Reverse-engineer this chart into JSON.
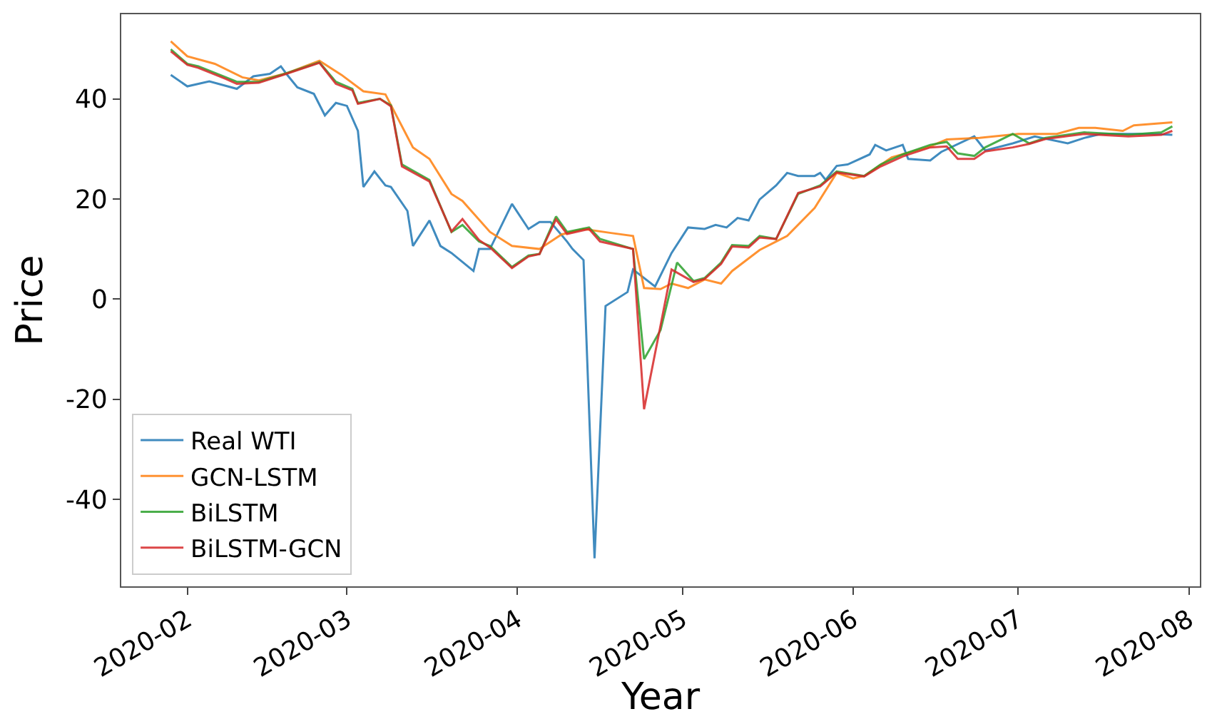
{
  "chart_data": {
    "type": "line",
    "xlabel": "Year",
    "ylabel": "Price",
    "xlim": [
      "2020-01-20",
      "2020-08-03"
    ],
    "ylim": [
      -57.4,
      56.9
    ],
    "xticks": [
      "2020-02",
      "2020-03",
      "2020-04",
      "2020-05",
      "2020-06",
      "2020-07",
      "2020-08"
    ],
    "yticks": [
      -40,
      -20,
      0,
      20,
      40
    ],
    "grid": false,
    "legend": "bottom left",
    "marker": "none",
    "line_style": "solid",
    "series": [
      {
        "name": "Real WTI",
        "color": "#1f77b4",
        "x": [
          "2020-01-29",
          "2020-02-01",
          "2020-02-05",
          "2020-02-10",
          "2020-02-13",
          "2020-02-16",
          "2020-02-18",
          "2020-02-19",
          "2020-02-21",
          "2020-02-24",
          "2020-02-26",
          "2020-02-28",
          "2020-03-01",
          "2020-03-03",
          "2020-03-04",
          "2020-03-06",
          "2020-03-08",
          "2020-03-09",
          "2020-03-12",
          "2020-03-13",
          "2020-03-16",
          "2020-03-18",
          "2020-03-20",
          "2020-03-24",
          "2020-03-25",
          "2020-03-27",
          "2020-03-31",
          "2020-04-03",
          "2020-04-05",
          "2020-04-07",
          "2020-04-10",
          "2020-04-11",
          "2020-04-13",
          "2020-04-15",
          "2020-04-17",
          "2020-04-21",
          "2020-04-22",
          "2020-04-26",
          "2020-04-29",
          "2020-05-02",
          "2020-05-05",
          "2020-05-07",
          "2020-05-09",
          "2020-05-11",
          "2020-05-13",
          "2020-05-15",
          "2020-05-18",
          "2020-05-20",
          "2020-05-22",
          "2020-05-25",
          "2020-05-26",
          "2020-05-27",
          "2020-05-29",
          "2020-05-31",
          "2020-06-04",
          "2020-06-05",
          "2020-06-07",
          "2020-06-10",
          "2020-06-11",
          "2020-06-15",
          "2020-06-17",
          "2020-06-23",
          "2020-06-25",
          "2020-06-30",
          "2020-07-04",
          "2020-07-10",
          "2020-07-13",
          "2020-07-16",
          "2020-07-21",
          "2020-07-25",
          "2020-07-29"
        ],
        "values": [
          44.8,
          42.5,
          43.5,
          42,
          44.5,
          45,
          46.5,
          45,
          42.3,
          41,
          36.7,
          39.2,
          38.6,
          33.6,
          22.4,
          25.5,
          22.7,
          22.4,
          17.6,
          10.6,
          15.7,
          10.6,
          9.2,
          5.6,
          10,
          10,
          19,
          14,
          15.4,
          15.4,
          11.5,
          10,
          7.8,
          -51.8,
          -1.4,
          1.4,
          5.9,
          2.5,
          9.2,
          14.3,
          14,
          14.8,
          14.3,
          16.2,
          15.7,
          19.9,
          22.7,
          25.2,
          24.6,
          24.6,
          25.2,
          23.8,
          26.6,
          26.9,
          28.9,
          30.8,
          29.7,
          30.8,
          28,
          27.7,
          29.4,
          32.5,
          29.7,
          31.1,
          32.5,
          31.1,
          32.2,
          33,
          33,
          33,
          32.8
        ]
      },
      {
        "name": "GCN-LSTM",
        "color": "#ff7f0e",
        "x": [
          "2020-01-29",
          "2020-02-01",
          "2020-02-06",
          "2020-02-11",
          "2020-02-14",
          "2020-02-19",
          "2020-02-25",
          "2020-02-29",
          "2020-03-04",
          "2020-03-08",
          "2020-03-13",
          "2020-03-16",
          "2020-03-20",
          "2020-03-22",
          "2020-03-27",
          "2020-03-31",
          "2020-04-05",
          "2020-04-09",
          "2020-04-13",
          "2020-04-18",
          "2020-04-22",
          "2020-04-24",
          "2020-04-27",
          "2020-04-29",
          "2020-05-02",
          "2020-05-05",
          "2020-05-08",
          "2020-05-10",
          "2020-05-15",
          "2020-05-18",
          "2020-05-20",
          "2020-05-25",
          "2020-05-29",
          "2020-06-01",
          "2020-06-03",
          "2020-06-08",
          "2020-06-15",
          "2020-06-18",
          "2020-06-24",
          "2020-07-01",
          "2020-07-08",
          "2020-07-12",
          "2020-07-15",
          "2020-07-20",
          "2020-07-22",
          "2020-07-29"
        ],
        "values": [
          51.5,
          48.5,
          47,
          44.3,
          43.7,
          45.1,
          47.6,
          44.8,
          41.5,
          40.9,
          30.3,
          28,
          21,
          19.6,
          13.4,
          10.6,
          10,
          12.9,
          14,
          13.2,
          12.6,
          2.2,
          2,
          3.1,
          2.2,
          3.9,
          3.1,
          5.6,
          9.8,
          11.5,
          12.6,
          18.2,
          25.2,
          24.1,
          24.6,
          28.3,
          30.5,
          31.9,
          32.2,
          33,
          33,
          34.2,
          34.2,
          33.6,
          34.7,
          35.3
        ]
      },
      {
        "name": "BiLSTM",
        "color": "#2ca02c",
        "x": [
          "2020-01-29",
          "2020-02-01",
          "2020-02-03",
          "2020-02-08",
          "2020-02-10",
          "2020-02-14",
          "2020-02-19",
          "2020-02-25",
          "2020-02-28",
          "2020-03-02",
          "2020-03-03",
          "2020-03-07",
          "2020-03-09",
          "2020-03-11",
          "2020-03-16",
          "2020-03-20",
          "2020-03-22",
          "2020-03-25",
          "2020-03-27",
          "2020-03-31",
          "2020-04-03",
          "2020-04-05",
          "2020-04-08",
          "2020-04-10",
          "2020-04-14",
          "2020-04-16",
          "2020-04-22",
          "2020-04-24",
          "2020-04-27",
          "2020-04-30",
          "2020-05-03",
          "2020-05-05",
          "2020-05-08",
          "2020-05-10",
          "2020-05-13",
          "2020-05-15",
          "2020-05-18",
          "2020-05-22",
          "2020-05-26",
          "2020-05-29",
          "2020-06-03",
          "2020-06-06",
          "2020-06-10",
          "2020-06-15",
          "2020-06-18",
          "2020-06-20",
          "2020-06-23",
          "2020-06-25",
          "2020-06-30",
          "2020-07-03",
          "2020-07-06",
          "2020-07-13",
          "2020-07-21",
          "2020-07-27",
          "2020-07-29"
        ],
        "values": [
          49.9,
          47,
          46.5,
          44.3,
          43.4,
          43.4,
          45.1,
          47.3,
          43.4,
          42,
          39.2,
          40,
          38.7,
          26.9,
          23.8,
          13.4,
          14.8,
          11.5,
          10.6,
          6.4,
          8.7,
          9,
          16.5,
          13.4,
          14.3,
          12,
          10,
          -12,
          -6.2,
          7.3,
          3.6,
          4.2,
          7.3,
          10.8,
          10.6,
          12.6,
          12,
          21,
          22.7,
          25.5,
          24.6,
          26.9,
          28.9,
          30.8,
          31.4,
          29.1,
          28.6,
          30.3,
          33,
          31.1,
          32.2,
          33.3,
          32.8,
          33.3,
          34.5
        ]
      },
      {
        "name": "BiLSTM-GCN",
        "color": "#d62728",
        "x": [
          "2020-01-29",
          "2020-02-01",
          "2020-02-03",
          "2020-02-08",
          "2020-02-10",
          "2020-02-14",
          "2020-02-19",
          "2020-02-25",
          "2020-02-28",
          "2020-03-02",
          "2020-03-03",
          "2020-03-07",
          "2020-03-09",
          "2020-03-11",
          "2020-03-16",
          "2020-03-20",
          "2020-03-22",
          "2020-03-25",
          "2020-03-27",
          "2020-03-31",
          "2020-04-03",
          "2020-04-05",
          "2020-04-08",
          "2020-04-10",
          "2020-04-14",
          "2020-04-16",
          "2020-04-22",
          "2020-04-24",
          "2020-04-29",
          "2020-05-03",
          "2020-05-05",
          "2020-05-08",
          "2020-05-10",
          "2020-05-13",
          "2020-05-15",
          "2020-05-18",
          "2020-05-22",
          "2020-05-26",
          "2020-05-29",
          "2020-06-03",
          "2020-06-06",
          "2020-06-10",
          "2020-06-15",
          "2020-06-18",
          "2020-06-20",
          "2020-06-23",
          "2020-06-25",
          "2020-06-30",
          "2020-07-03",
          "2020-07-06",
          "2020-07-13",
          "2020-07-21",
          "2020-07-27",
          "2020-07-29"
        ],
        "values": [
          49.5,
          46.8,
          46.2,
          44,
          43,
          43.2,
          45,
          47.2,
          43,
          41.7,
          39,
          40,
          38.5,
          26.5,
          23.5,
          13.5,
          16,
          11.8,
          10.3,
          6.2,
          8.5,
          9,
          15.9,
          13,
          14,
          11.5,
          10,
          -22,
          5.9,
          3.4,
          4,
          7,
          10.5,
          10.3,
          12.3,
          12,
          21.2,
          22.5,
          25.3,
          24.5,
          26.5,
          28.5,
          30.3,
          30.5,
          28,
          28,
          29.5,
          30.3,
          31,
          32,
          33,
          32.5,
          32.8,
          33.6
        ]
      }
    ]
  }
}
